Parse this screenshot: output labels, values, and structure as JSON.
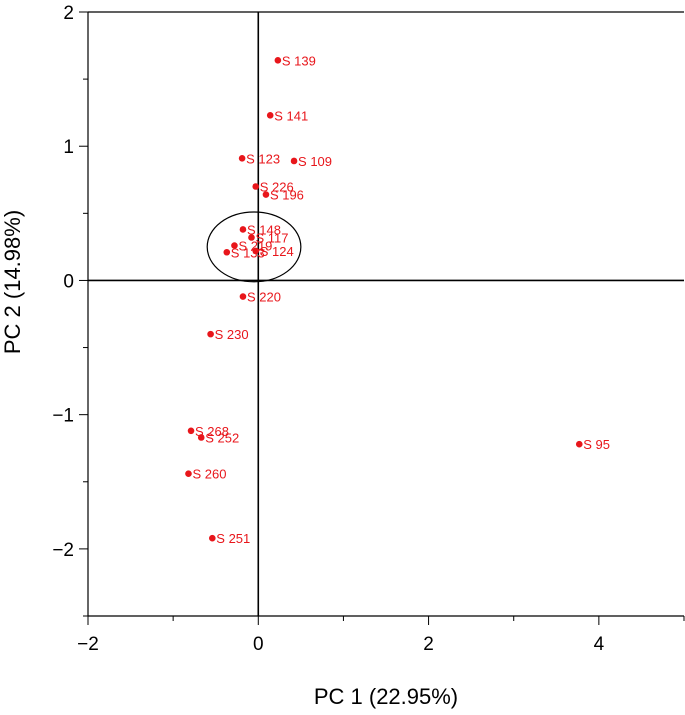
{
  "chart_data": {
    "type": "scatter",
    "xlabel": "PC 1 (22.95%)",
    "ylabel": "PC 2 (14.98%)",
    "xlim": [
      -2,
      5
    ],
    "ylim": [
      -2.5,
      2
    ],
    "xticks": [
      -2,
      0,
      2,
      4
    ],
    "xtick_labels": [
      "−2",
      "0",
      "2",
      "4"
    ],
    "yticks": [
      -2,
      -1,
      0,
      1,
      2
    ],
    "ytick_labels": [
      "−2",
      "−1",
      "0",
      "1",
      "2"
    ],
    "grid": false,
    "reference_lines": {
      "x": 0,
      "y": 0
    },
    "point_color": "#e8161b",
    "highlight_ellipse": {
      "cx": -0.05,
      "cy": 0.25,
      "rx": 0.55,
      "ry": 0.26
    },
    "points": [
      {
        "label": "S 139",
        "x": 0.23,
        "y": 1.64
      },
      {
        "label": "S 141",
        "x": 0.14,
        "y": 1.23
      },
      {
        "label": "S 123",
        "x": -0.19,
        "y": 0.91
      },
      {
        "label": "S 109",
        "x": 0.42,
        "y": 0.89
      },
      {
        "label": "S 226",
        "x": -0.03,
        "y": 0.7
      },
      {
        "label": "S 196",
        "x": 0.09,
        "y": 0.64
      },
      {
        "label": "S 148",
        "x": -0.18,
        "y": 0.38
      },
      {
        "label": "S 117",
        "x": -0.08,
        "y": 0.32
      },
      {
        "label": "S 219",
        "x": -0.28,
        "y": 0.26
      },
      {
        "label": "S 124",
        "x": -0.03,
        "y": 0.22
      },
      {
        "label": "S 133",
        "x": -0.37,
        "y": 0.21
      },
      {
        "label": "S 220",
        "x": -0.18,
        "y": -0.12
      },
      {
        "label": "S 230",
        "x": -0.56,
        "y": -0.4
      },
      {
        "label": "S 268",
        "x": -0.79,
        "y": -1.12
      },
      {
        "label": "S 252",
        "x": -0.67,
        "y": -1.17
      },
      {
        "label": "S 260",
        "x": -0.82,
        "y": -1.44
      },
      {
        "label": "S 251",
        "x": -0.54,
        "y": -1.92
      },
      {
        "label": "S 95",
        "x": 3.77,
        "y": -1.22
      }
    ]
  }
}
